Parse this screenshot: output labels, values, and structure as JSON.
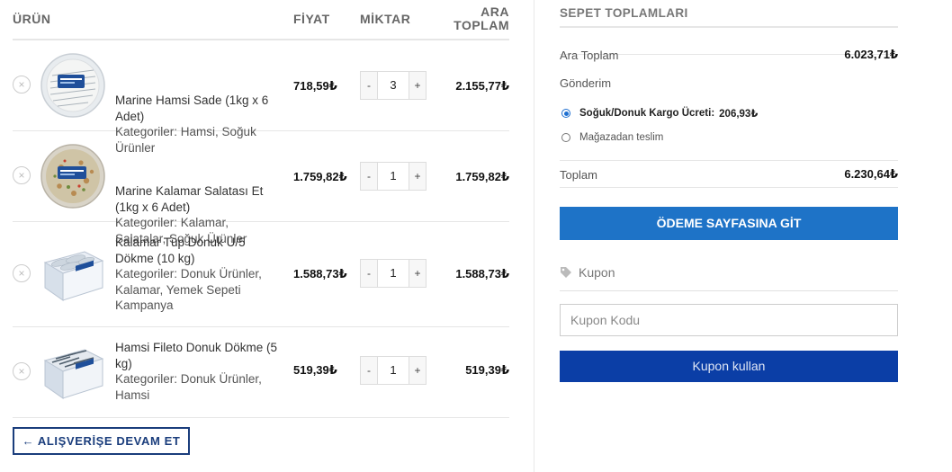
{
  "cart": {
    "headers": {
      "product": "ÜRÜN",
      "price": "FİYAT",
      "quantity": "MİKTAR",
      "subtotal_l1": "ARA",
      "subtotal_l2": "TOPLAM"
    },
    "items": [
      {
        "name": "Marine Hamsi Sade (1kg x 6 Adet)",
        "categories": "Kategoriler: Hamsi, Soğuk Ürünler",
        "price": "718,59₺",
        "qty": "3",
        "subtotal": "2.155,77₺"
      },
      {
        "name": "Marine Kalamar Salatası Et (1kg x 6 Adet)",
        "categories": "Kategoriler: Kalamar, Salatalar, Soğuk Ürünler",
        "price": "1.759,82₺",
        "qty": "1",
        "subtotal": "1.759,82₺"
      },
      {
        "name": "Kalamar Tüp Donuk U/5 Dökme (10 kg)",
        "categories": "Kategoriler: Donuk Ürünler, Kalamar, Yemek Sepeti Kampanya",
        "price": "1.588,73₺",
        "qty": "1",
        "subtotal": "1.588,73₺"
      },
      {
        "name": "Hamsi Fileto Donuk Dökme (5 kg)",
        "categories": "Kategoriler: Donuk Ürünler, Hamsi",
        "price": "519,39₺",
        "qty": "1",
        "subtotal": "519,39₺"
      }
    ],
    "remove_symbol": "×",
    "minus": "-",
    "plus": "+",
    "continue_label": "← ALIŞVERİŞE DEVAM ET"
  },
  "totals": {
    "title": "SEPET TOPLAMLARI",
    "subtotal_label": "Ara Toplam",
    "subtotal_value": "6.023,71₺",
    "shipping_label": "Gönderim",
    "shipping_options": [
      {
        "label": "Soğuk/Donuk Kargo Ücreti:",
        "price": "206,93₺",
        "selected": true
      },
      {
        "label": "Mağazadan teslim",
        "price": "",
        "selected": false
      }
    ],
    "total_label": "Toplam",
    "total_value": "6.230,64₺",
    "checkout_label": "ÖDEME SAYFASINA GİT"
  },
  "coupon": {
    "title": "Kupon",
    "placeholder": "Kupon Kodu",
    "value": "",
    "apply_label": "Kupon kullan"
  },
  "colors": {
    "primary_blue": "#1e73c7",
    "dark_blue": "#0b3ea6",
    "navy": "#1a3d7c"
  },
  "icons": {
    "remove": "close-circle-icon",
    "coupon": "tag-icon",
    "radio": "radio-icon"
  }
}
